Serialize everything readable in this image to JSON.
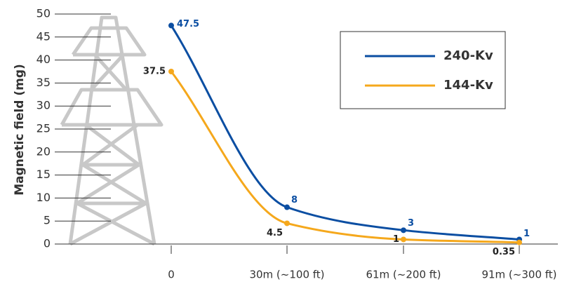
{
  "chart_data": {
    "type": "line",
    "y_label": "Magnetic field (mg)",
    "categories": [
      "0",
      "30m (~100 ft)",
      "61m (~200 ft)",
      "91m (~300 ft)"
    ],
    "series": [
      {
        "name": "240-Kv",
        "color": "#0b4ea2",
        "values": [
          47.5,
          8,
          3,
          1
        ]
      },
      {
        "name": "144-Kv",
        "color": "#f5a81c",
        "values": [
          37.5,
          4.5,
          1,
          0.35
        ]
      }
    ],
    "ylim": [
      0,
      50
    ],
    "yticks": [
      0,
      5,
      10,
      15,
      20,
      25,
      30,
      35,
      40,
      45,
      50
    ],
    "legend": "upper right"
  }
}
